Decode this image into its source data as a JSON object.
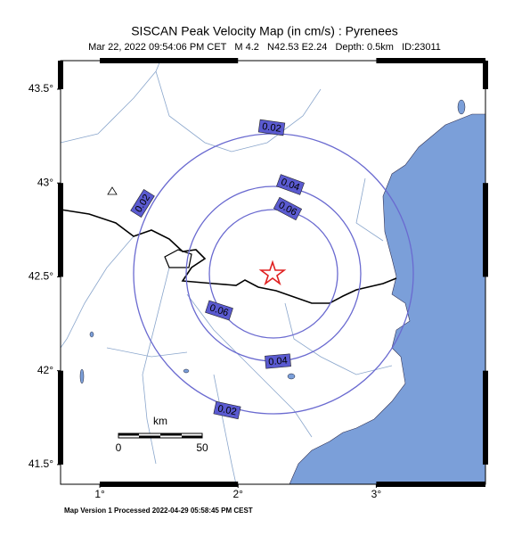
{
  "map": {
    "title": "SISCAN Peak Velocity Map (in cm/s) : Pyrenees",
    "subtitle": "Mar 22, 2022 09:54:06 PM CET   M 4.2   N42.53 E2.24   Depth: 0.5km   ID:23011",
    "xlim": [
      0.716,
      3.79
    ],
    "ylim": [
      41.395,
      43.652
    ],
    "xticks": [
      {
        "value": 1,
        "label": "1°"
      },
      {
        "value": 2,
        "label": "2°"
      },
      {
        "value": 3,
        "label": "3°"
      }
    ],
    "yticks": [
      {
        "value": 41.5,
        "label": "41.5°"
      },
      {
        "value": 42,
        "label": "42°"
      },
      {
        "value": 42.5,
        "label": "42.5°"
      },
      {
        "value": 43,
        "label": "43°"
      },
      {
        "value": 43.5,
        "label": "43.5°"
      }
    ],
    "contours": [
      {
        "label": "0.02"
      },
      {
        "label": "0.04"
      },
      {
        "label": "0.06"
      }
    ],
    "scale_bar": {
      "unit": "km",
      "labels": [
        "0",
        "50"
      ]
    },
    "footer": "Map Version 1 Processed 2022-04-29 05:58:45 PM CEST"
  }
}
